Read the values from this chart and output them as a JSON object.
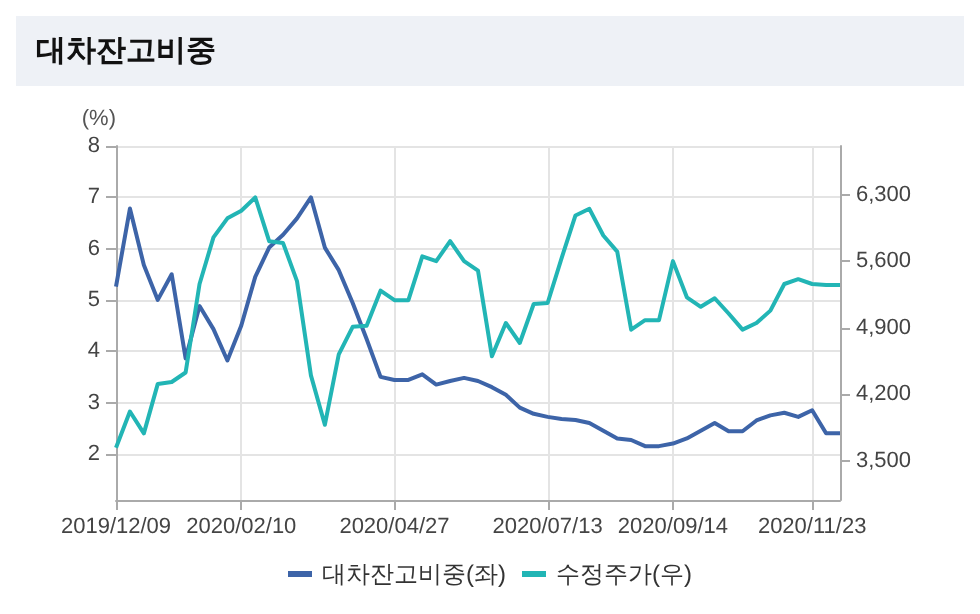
{
  "chart_data": {
    "type": "line",
    "title": "대차잔고비중",
    "ylabel": "(%)",
    "categories": [
      "2019/12/09",
      null,
      null,
      null,
      null,
      null,
      null,
      null,
      null,
      "2020/02/10",
      null,
      null,
      null,
      null,
      null,
      null,
      null,
      null,
      null,
      null,
      "2020/04/27",
      null,
      null,
      null,
      null,
      null,
      null,
      null,
      null,
      null,
      null,
      "2020/07/13",
      null,
      null,
      null,
      null,
      null,
      null,
      null,
      null,
      "2020/09/14",
      null,
      null,
      null,
      null,
      null,
      null,
      null,
      null,
      null,
      "2020/11/23",
      null,
      null
    ],
    "series": [
      {
        "name": "대차잔고비중(좌)",
        "color": "#3d64a8",
        "values": [
          5.26,
          6.78,
          5.68,
          5.0,
          5.5,
          3.86,
          4.88,
          4.43,
          3.82,
          4.5,
          5.45,
          6.02,
          6.27,
          6.59,
          7.0,
          6.02,
          5.58,
          4.94,
          4.24,
          3.5,
          3.44,
          3.44,
          3.55,
          3.35,
          3.42,
          3.48,
          3.42,
          3.3,
          3.15,
          2.9,
          2.78,
          2.72,
          2.68,
          2.66,
          2.6,
          2.45,
          2.3,
          2.27,
          2.15,
          2.15,
          2.2,
          2.3,
          2.45,
          2.6,
          2.44,
          2.44,
          2.65,
          2.75,
          2.8,
          2.72,
          2.85,
          2.4,
          2.4
        ]
      },
      {
        "name": "수정주가(우)",
        "color": "#22b5b5",
        "axis": "y2",
        "values": [
          3640,
          4020,
          3790,
          4310,
          4330,
          4430,
          5360,
          5850,
          6050,
          6130,
          6270,
          5810,
          5790,
          5390,
          4400,
          3880,
          4620,
          4910,
          4920,
          5290,
          5190,
          5190,
          5650,
          5600,
          5810,
          5600,
          5500,
          4600,
          4950,
          4740,
          5150,
          5160,
          5630,
          6080,
          6150,
          5870,
          5700,
          4880,
          4980,
          4980,
          5600,
          5220,
          5120,
          5210,
          5050,
          4880,
          4950,
          5080,
          5360,
          5410,
          5360,
          5350,
          5350
        ]
      }
    ],
    "ylim": [
      1.1,
      8
    ],
    "yticks": [
      2,
      3,
      4,
      5,
      6,
      7,
      8
    ],
    "y2lim": [
      3090,
      6810
    ],
    "y2ticks": [
      {
        "value": 3500,
        "label": "3,500"
      },
      {
        "value": 4200,
        "label": "4,200"
      },
      {
        "value": 4900,
        "label": "4,900"
      },
      {
        "value": 5600,
        "label": "5,600"
      },
      {
        "value": 6300,
        "label": "6,300"
      }
    ],
    "grid": true,
    "legend": "bottom",
    "marker": "none",
    "line_style": "solid"
  }
}
